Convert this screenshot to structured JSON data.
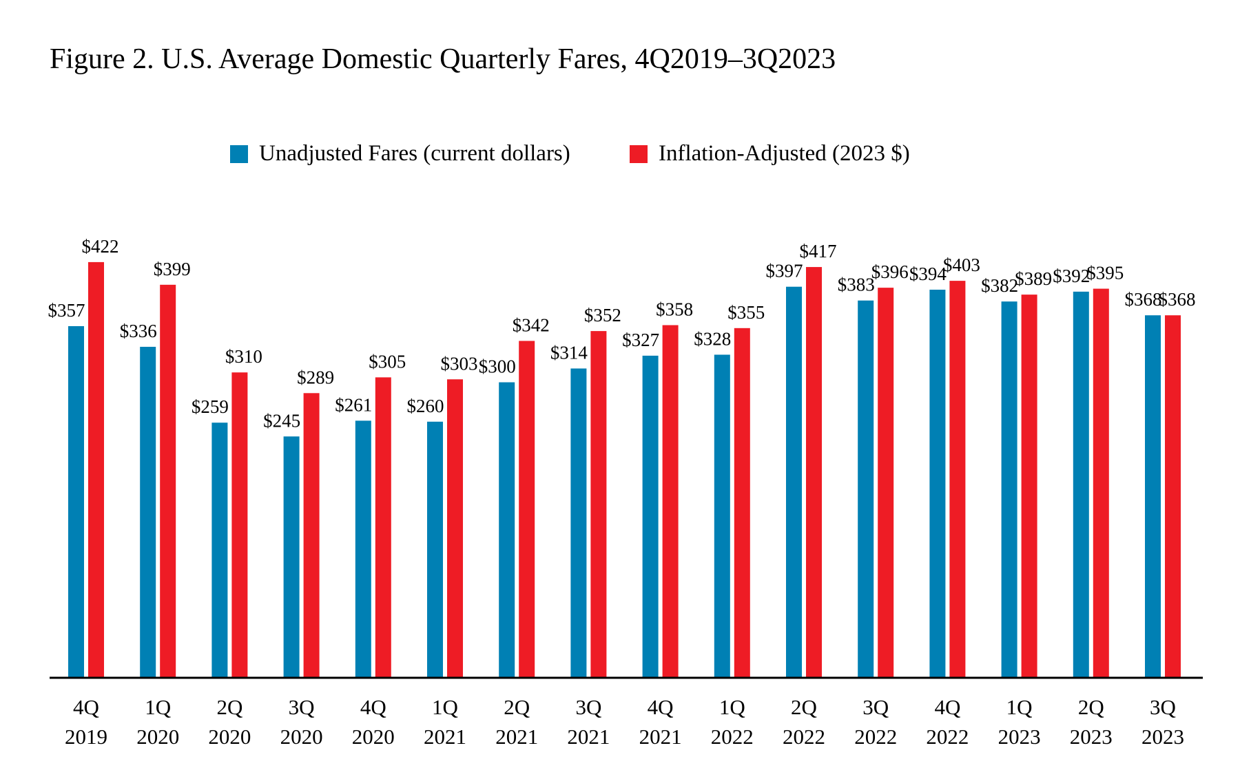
{
  "chart_data": {
    "type": "bar",
    "title": "Figure 2. U.S. Average Domestic Quarterly Fares, 4Q2019–3Q2023",
    "xlabel": "",
    "ylabel": "",
    "ylim": [
      0,
      440
    ],
    "legend_position": "top-center",
    "categories": [
      [
        "4Q",
        "2019"
      ],
      [
        "1Q",
        "2020"
      ],
      [
        "2Q",
        "2020"
      ],
      [
        "3Q",
        "2020"
      ],
      [
        "4Q",
        "2020"
      ],
      [
        "1Q",
        "2021"
      ],
      [
        "2Q",
        "2021"
      ],
      [
        "3Q",
        "2021"
      ],
      [
        "4Q",
        "2021"
      ],
      [
        "1Q",
        "2022"
      ],
      [
        "2Q",
        "2022"
      ],
      [
        "3Q",
        "2022"
      ],
      [
        "4Q",
        "2022"
      ],
      [
        "1Q",
        "2023"
      ],
      [
        "2Q",
        "2023"
      ],
      [
        "3Q",
        "2023"
      ]
    ],
    "series": [
      {
        "name": "Unadjusted Fares (current dollars)",
        "color": "#0080B4",
        "values": [
          357,
          336,
          259,
          245,
          261,
          260,
          300,
          314,
          327,
          328,
          397,
          383,
          394,
          382,
          392,
          368
        ],
        "labels": [
          "$357",
          "$336",
          "$259",
          "$245",
          "$261",
          "$260",
          "$300",
          "$314",
          "$327",
          "$328",
          "$397",
          "$383",
          "$394",
          "$382",
          "$392",
          "$368"
        ]
      },
      {
        "name": "Inflation-Adjusted (2023 $)",
        "color": "#EE1C25",
        "values": [
          422,
          399,
          310,
          289,
          305,
          303,
          342,
          352,
          358,
          355,
          417,
          396,
          403,
          389,
          395,
          368
        ],
        "labels": [
          "$422",
          "$399",
          "$310",
          "$289",
          "$305",
          "$303",
          "$342",
          "$352",
          "$358",
          "$355",
          "$417",
          "$396",
          "$403",
          "$389",
          "$395",
          "$368"
        ]
      }
    ]
  }
}
